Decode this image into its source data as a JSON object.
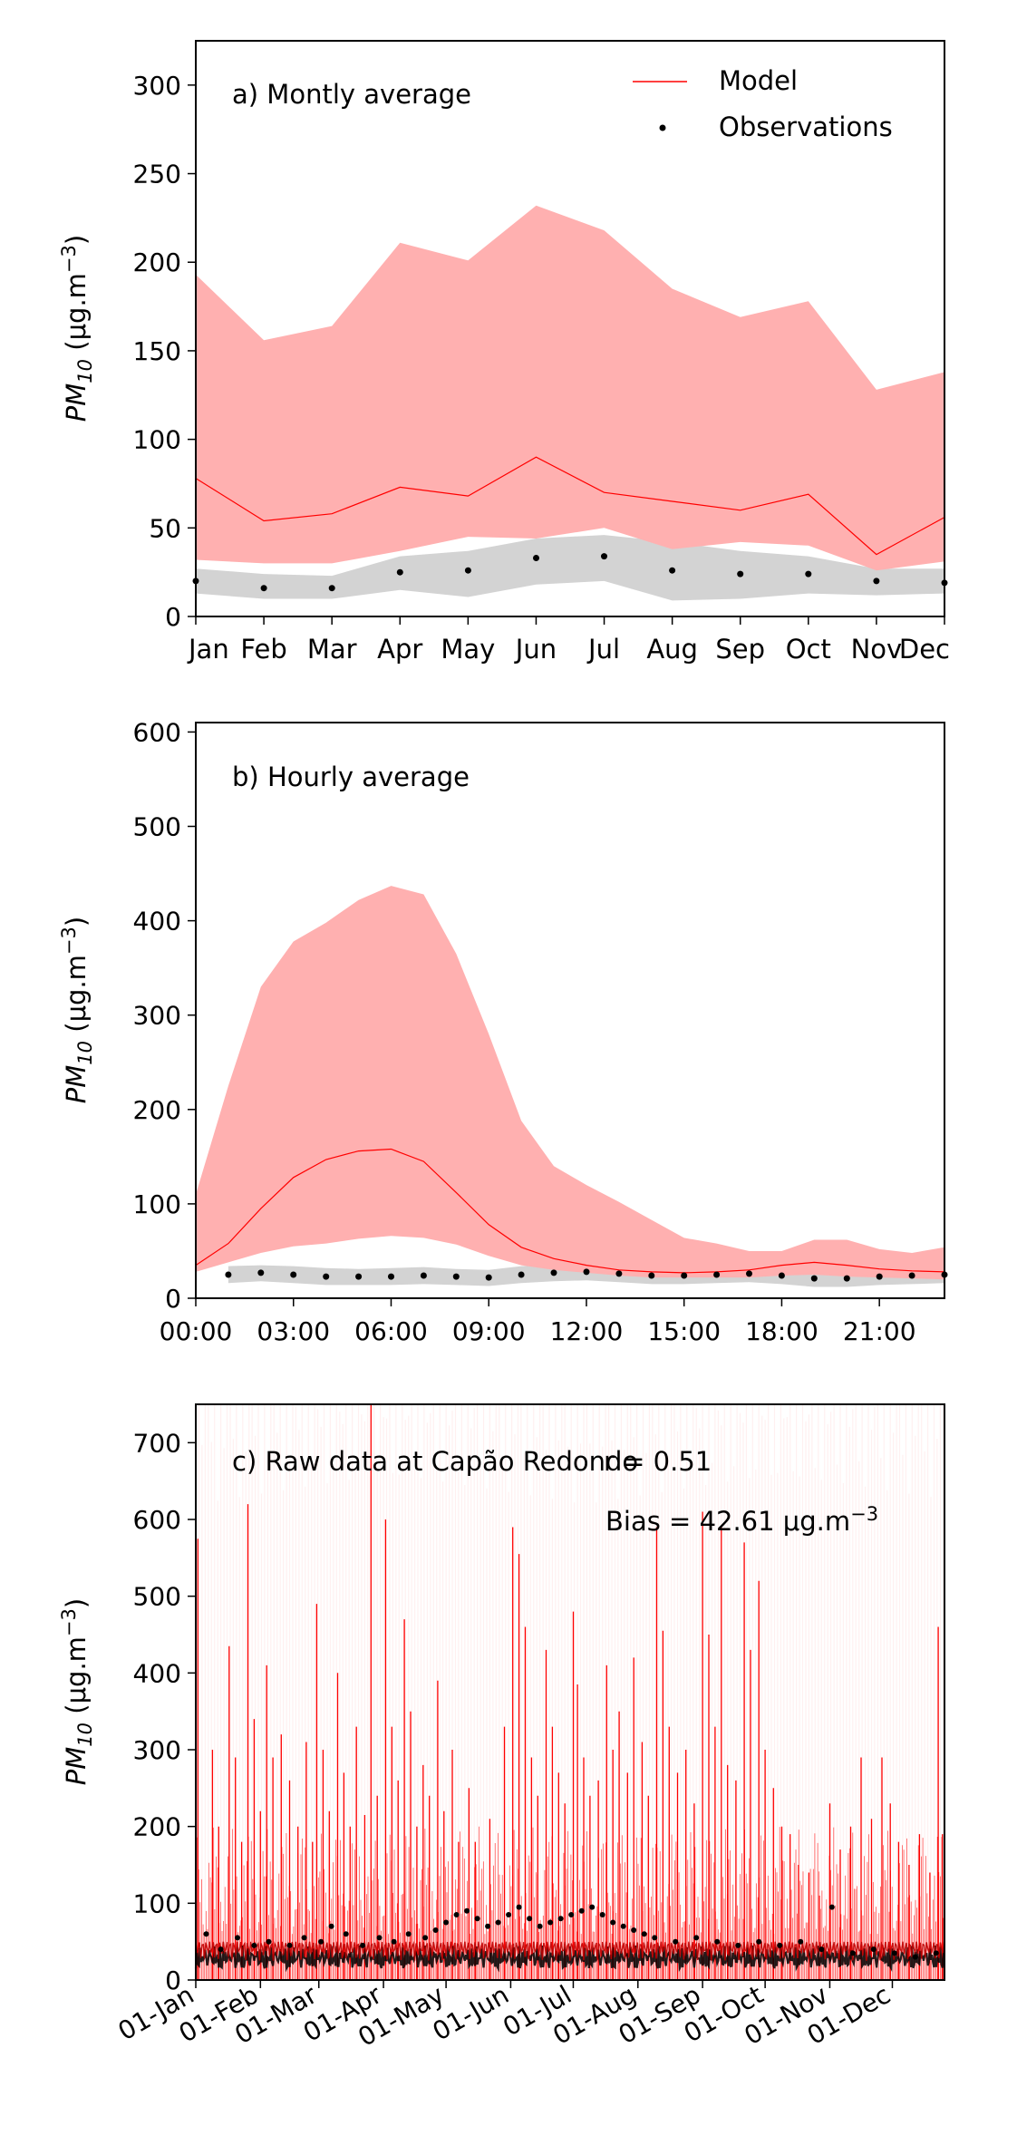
{
  "chart_data": [
    {
      "type": "line",
      "title": "a) Montly average",
      "ylabel_base": "PM",
      "ylabel_sub": "10",
      "ylabel_units": " (μg.m",
      "ylabel_exp": "−3",
      "ylabel_close": ")",
      "ylim": [
        0,
        325
      ],
      "yticks": [
        0,
        50,
        100,
        150,
        200,
        250,
        300
      ],
      "categories": [
        "Jan",
        "Feb",
        "Mar",
        "Apr",
        "May",
        "Jun",
        "Jul",
        "Aug",
        "Sep",
        "Oct",
        "Nov",
        "Dec"
      ],
      "x": [
        0,
        1,
        2,
        3,
        4,
        5,
        6,
        7,
        8,
        9,
        10,
        11
      ],
      "xlim": [
        0,
        11
      ],
      "legend": {
        "placement": "top-right",
        "model": "Model",
        "observations": "Observations"
      },
      "model": {
        "mean": [
          78,
          54,
          58,
          73,
          68,
          90,
          70,
          65,
          60,
          69,
          35,
          56
        ],
        "upper": [
          193,
          156,
          164,
          211,
          201,
          232,
          218,
          185,
          169,
          178,
          128,
          138
        ],
        "lower": [
          32,
          30,
          30,
          37,
          45,
          44,
          50,
          38,
          42,
          40,
          26,
          31
        ]
      },
      "observations": {
        "mean": [
          20,
          16,
          16,
          25,
          26,
          33,
          34,
          26,
          24,
          24,
          20,
          19
        ],
        "upper": [
          27,
          24,
          23,
          34,
          37,
          44,
          46,
          42,
          37,
          34,
          27,
          27
        ],
        "lower": [
          13,
          10,
          10,
          15,
          11,
          18,
          20,
          9,
          10,
          13,
          12,
          13
        ]
      },
      "colors": {
        "model_line": "#ff0000",
        "model_band": "#ffb0b0",
        "obs_band": "#d3d3d3",
        "obs_point": "#000000"
      }
    },
    {
      "type": "line",
      "title": "b) Hourly average",
      "ylabel_base": "PM",
      "ylabel_sub": "10",
      "ylabel_units": " (μg.m",
      "ylabel_exp": "−3",
      "ylabel_close": ")",
      "ylim": [
        0,
        610
      ],
      "yticks": [
        0,
        100,
        200,
        300,
        400,
        500,
        600
      ],
      "xlim": [
        0,
        23
      ],
      "xticks": [
        0,
        3,
        6,
        9,
        12,
        15,
        18,
        21
      ],
      "xticklabels": [
        "00:00",
        "03:00",
        "06:00",
        "09:00",
        "12:00",
        "15:00",
        "18:00",
        "21:00"
      ],
      "x": [
        0,
        1,
        2,
        3,
        4,
        5,
        6,
        7,
        8,
        9,
        10,
        11,
        12,
        13,
        14,
        15,
        16,
        17,
        18,
        19,
        20,
        21,
        22,
        23
      ],
      "model": {
        "mean": [
          35,
          58,
          95,
          128,
          147,
          156,
          158,
          145,
          112,
          78,
          54,
          42,
          35,
          30,
          28,
          27,
          28,
          30,
          35,
          38,
          35,
          31,
          29,
          28
        ],
        "upper": [
          110,
          225,
          330,
          378,
          398,
          422,
          437,
          428,
          365,
          280,
          188,
          140,
          120,
          102,
          83,
          64,
          58,
          50,
          50,
          62,
          62,
          52,
          48,
          54
        ],
        "lower": [
          28,
          38,
          48,
          55,
          58,
          63,
          66,
          64,
          57,
          45,
          35,
          30,
          27,
          24,
          22,
          22,
          22,
          22,
          24,
          25,
          23,
          22,
          21,
          20
        ]
      },
      "observations": {
        "mean": [
          null,
          25,
          27,
          25,
          23,
          23,
          23,
          24,
          23,
          22,
          25,
          27,
          28,
          26,
          24,
          24,
          25,
          26,
          24,
          21,
          21,
          23,
          24,
          25
        ],
        "upper": [
          null,
          34,
          35,
          34,
          32,
          31,
          32,
          33,
          31,
          30,
          34,
          36,
          38,
          35,
          33,
          33,
          34,
          35,
          33,
          30,
          30,
          32,
          33,
          34
        ],
        "lower": [
          null,
          16,
          18,
          16,
          14,
          14,
          14,
          15,
          14,
          13,
          16,
          18,
          19,
          17,
          15,
          15,
          16,
          17,
          15,
          12,
          12,
          14,
          15,
          16
        ]
      },
      "colors": {
        "model_line": "#ff0000",
        "model_band": "#ffb0b0",
        "obs_band": "#d3d3d3",
        "obs_point": "#000000"
      }
    },
    {
      "type": "line",
      "title": "c) Raw data at Capão Redondo",
      "stat_r": "r = 0.51",
      "stat_bias": "Bias = 42.61 μg.m",
      "stat_bias_exp": "−3",
      "ylabel_base": "PM",
      "ylabel_sub": "10",
      "ylabel_units": " (μg.m",
      "ylabel_exp": "−3",
      "ylabel_close": ")",
      "ylim": [
        0,
        750
      ],
      "yticks": [
        0,
        100,
        200,
        300,
        400,
        500,
        600,
        700
      ],
      "xlim_days": [
        0,
        359
      ],
      "xtick_days": [
        0,
        31,
        59,
        90,
        120,
        151,
        181,
        212,
        243,
        273,
        304,
        334
      ],
      "xticklabels": [
        "01-Jan",
        "01-Feb",
        "01-Mar",
        "01-Apr",
        "01-May",
        "01-Jun",
        "01-Jul",
        "01-Aug",
        "01-Sep",
        "01-Oct",
        "01-Nov",
        "01-Dec"
      ],
      "x_unit": "day_of_year",
      "model_spikes": [
        [
          1,
          575
        ],
        [
          8,
          300
        ],
        [
          11,
          200
        ],
        [
          16,
          435
        ],
        [
          19,
          290
        ],
        [
          22,
          180
        ],
        [
          25,
          620
        ],
        [
          28,
          340
        ],
        [
          31,
          220
        ],
        [
          34,
          410
        ],
        [
          37,
          290
        ],
        [
          41,
          320
        ],
        [
          45,
          260
        ],
        [
          49,
          200
        ],
        [
          53,
          310
        ],
        [
          56,
          180
        ],
        [
          58,
          490
        ],
        [
          61,
          300
        ],
        [
          64,
          220
        ],
        [
          68,
          400
        ],
        [
          71,
          270
        ],
        [
          74,
          200
        ],
        [
          77,
          330
        ],
        [
          81,
          215
        ],
        [
          84,
          750
        ],
        [
          87,
          240
        ],
        [
          91,
          600
        ],
        [
          94,
          330
        ],
        [
          97,
          260
        ],
        [
          100,
          470
        ],
        [
          103,
          350
        ],
        [
          106,
          200
        ],
        [
          109,
          280
        ],
        [
          112,
          240
        ],
        [
          116,
          390
        ],
        [
          119,
          220
        ],
        [
          123,
          300
        ],
        [
          126,
          180
        ],
        [
          131,
          250
        ],
        [
          134,
          180
        ],
        [
          141,
          210
        ],
        [
          148,
          330
        ],
        [
          152,
          590
        ],
        [
          155,
          555
        ],
        [
          158,
          460
        ],
        [
          161,
          290
        ],
        [
          164,
          240
        ],
        [
          168,
          430
        ],
        [
          171,
          330
        ],
        [
          174,
          270
        ],
        [
          177,
          230
        ],
        [
          181,
          480
        ],
        [
          183,
          385
        ],
        [
          186,
          290
        ],
        [
          189,
          240
        ],
        [
          193,
          260
        ],
        [
          197,
          410
        ],
        [
          200,
          300
        ],
        [
          203,
          350
        ],
        [
          207,
          270
        ],
        [
          210,
          420
        ],
        [
          214,
          310
        ],
        [
          217,
          240
        ],
        [
          221,
          590
        ],
        [
          224,
          455
        ],
        [
          227,
          330
        ],
        [
          231,
          270
        ],
        [
          235,
          300
        ],
        [
          239,
          230
        ],
        [
          243,
          610
        ],
        [
          246,
          450
        ],
        [
          249,
          330
        ],
        [
          252,
          590
        ],
        [
          255,
          280
        ],
        [
          259,
          260
        ],
        [
          263,
          570
        ],
        [
          266,
          430
        ],
        [
          270,
          520
        ],
        [
          273,
          300
        ],
        [
          277,
          250
        ],
        [
          281,
          200
        ],
        [
          285,
          190
        ],
        [
          289,
          150
        ],
        [
          294,
          140
        ],
        [
          299,
          110
        ],
        [
          304,
          230
        ],
        [
          309,
          170
        ],
        [
          314,
          200
        ],
        [
          319,
          290
        ],
        [
          324,
          210
        ],
        [
          329,
          290
        ],
        [
          333,
          230
        ],
        [
          337,
          180
        ],
        [
          342,
          150
        ],
        [
          347,
          190
        ],
        [
          352,
          140
        ],
        [
          356,
          460
        ],
        [
          358,
          190
        ]
      ],
      "observation_points": [
        [
          5,
          60
        ],
        [
          12,
          40
        ],
        [
          20,
          55
        ],
        [
          28,
          45
        ],
        [
          35,
          50
        ],
        [
          45,
          45
        ],
        [
          52,
          55
        ],
        [
          60,
          50
        ],
        [
          65,
          70
        ],
        [
          72,
          60
        ],
        [
          80,
          45
        ],
        [
          88,
          55
        ],
        [
          95,
          50
        ],
        [
          102,
          60
        ],
        [
          110,
          55
        ],
        [
          115,
          65
        ],
        [
          120,
          75
        ],
        [
          125,
          85
        ],
        [
          130,
          90
        ],
        [
          135,
          80
        ],
        [
          140,
          70
        ],
        [
          145,
          75
        ],
        [
          150,
          85
        ],
        [
          155,
          95
        ],
        [
          160,
          80
        ],
        [
          165,
          70
        ],
        [
          170,
          75
        ],
        [
          175,
          80
        ],
        [
          180,
          85
        ],
        [
          185,
          90
        ],
        [
          190,
          95
        ],
        [
          195,
          85
        ],
        [
          200,
          75
        ],
        [
          205,
          70
        ],
        [
          210,
          65
        ],
        [
          215,
          60
        ],
        [
          220,
          55
        ],
        [
          230,
          50
        ],
        [
          240,
          55
        ],
        [
          250,
          50
        ],
        [
          260,
          45
        ],
        [
          270,
          50
        ],
        [
          280,
          45
        ],
        [
          290,
          50
        ],
        [
          300,
          40
        ],
        [
          305,
          95
        ],
        [
          315,
          35
        ],
        [
          325,
          40
        ],
        [
          335,
          35
        ],
        [
          345,
          30
        ],
        [
          355,
          35
        ]
      ],
      "colors": {
        "model_line": "#ff0000",
        "model_band": "#ffe4e4",
        "obs_point": "#000000"
      }
    }
  ]
}
